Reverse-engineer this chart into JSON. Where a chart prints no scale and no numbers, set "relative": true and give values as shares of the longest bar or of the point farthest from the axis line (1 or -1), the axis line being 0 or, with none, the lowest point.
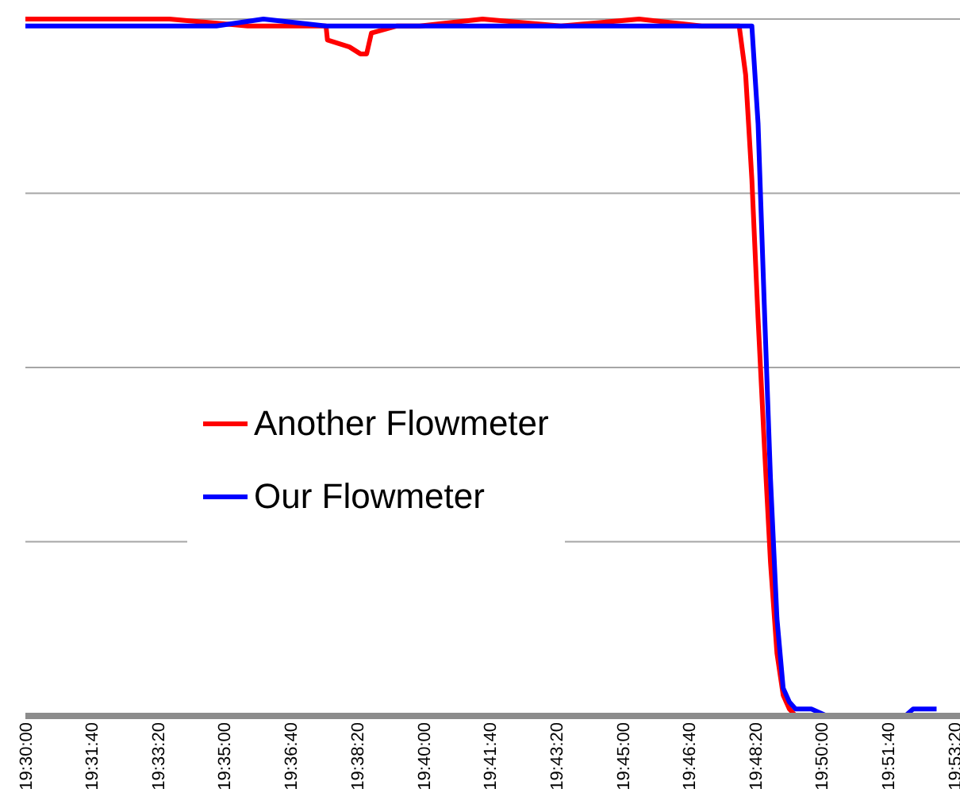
{
  "chart_data": {
    "type": "line",
    "relative": true,
    "grid": "y",
    "legend": "center",
    "line_style": "solid",
    "marker": "none",
    "xlim": [
      19.5,
      19.8911
    ],
    "xticks": [
      {
        "value": 19.5,
        "label": "19:30:00"
      },
      {
        "value": 19.5278,
        "label": "19:31:40"
      },
      {
        "value": 19.5556,
        "label": "19:33:20"
      },
      {
        "value": 19.5833,
        "label": "19:35:00"
      },
      {
        "value": 19.6111,
        "label": "19:36:40"
      },
      {
        "value": 19.6389,
        "label": "19:38:20"
      },
      {
        "value": 19.6667,
        "label": "19:40:00"
      },
      {
        "value": 19.6944,
        "label": "19:41:40"
      },
      {
        "value": 19.7222,
        "label": "19:43:20"
      },
      {
        "value": 19.75,
        "label": "19:45:00"
      },
      {
        "value": 19.7778,
        "label": "19:46:40"
      },
      {
        "value": 19.8056,
        "label": "19:48:20"
      },
      {
        "value": 19.8333,
        "label": "19:50:00"
      },
      {
        "value": 19.8611,
        "label": "19:51:40"
      },
      {
        "value": 19.8889,
        "label": "19:53:20"
      }
    ],
    "series": [
      {
        "name": "Another Flowmeter",
        "color": "#ff0000",
        "x": [
          19.5,
          19.5275,
          19.5603,
          19.593,
          19.6258,
          19.6264,
          19.6356,
          19.6402,
          19.6428,
          19.6448,
          19.6553,
          19.6651,
          19.6913,
          19.7241,
          19.7568,
          19.783,
          19.7961,
          19.7987,
          19.8014,
          19.804,
          19.8066,
          19.8092,
          19.8118,
          19.8145,
          19.8171,
          19.8197,
          19.8223,
          19.8551,
          19.8911
        ],
        "values": [
          1.0,
          1,
          1.0,
          0.99,
          0.99,
          0.97,
          0.96,
          0.95,
          0.95,
          0.98,
          0.99,
          0.99,
          1.0,
          0.99,
          1.0,
          0.99,
          0.99,
          0.99,
          0.92,
          0.77,
          0.57,
          0.39,
          0.22,
          0.09,
          0.03,
          0.01,
          0.0,
          0.0,
          0.0
        ]
      },
      {
        "name": "Our Flowmeter",
        "color": "#0000ff",
        "x": [
          19.5,
          19.5144,
          19.5341,
          19.5537,
          19.5799,
          19.5996,
          19.6258,
          19.652,
          19.6782,
          19.7044,
          19.7208,
          19.7437,
          19.7699,
          19.7896,
          19.8014,
          19.804,
          19.8066,
          19.8092,
          19.8118,
          19.8145,
          19.8171,
          19.8197,
          19.8223,
          19.8289,
          19.8354,
          19.8682,
          19.8715,
          19.8813
        ],
        "values": [
          0.99,
          0.99,
          0.99,
          0.99,
          0.99,
          1.0,
          0.99,
          0.99,
          0.99,
          0.99,
          0.99,
          0.99,
          0.99,
          0.99,
          0.99,
          0.99,
          0.85,
          0.59,
          0.34,
          0.14,
          0.04,
          0.02,
          0.01,
          0.01,
          0.0,
          0.0,
          0.01,
          0.01
        ]
      }
    ]
  }
}
